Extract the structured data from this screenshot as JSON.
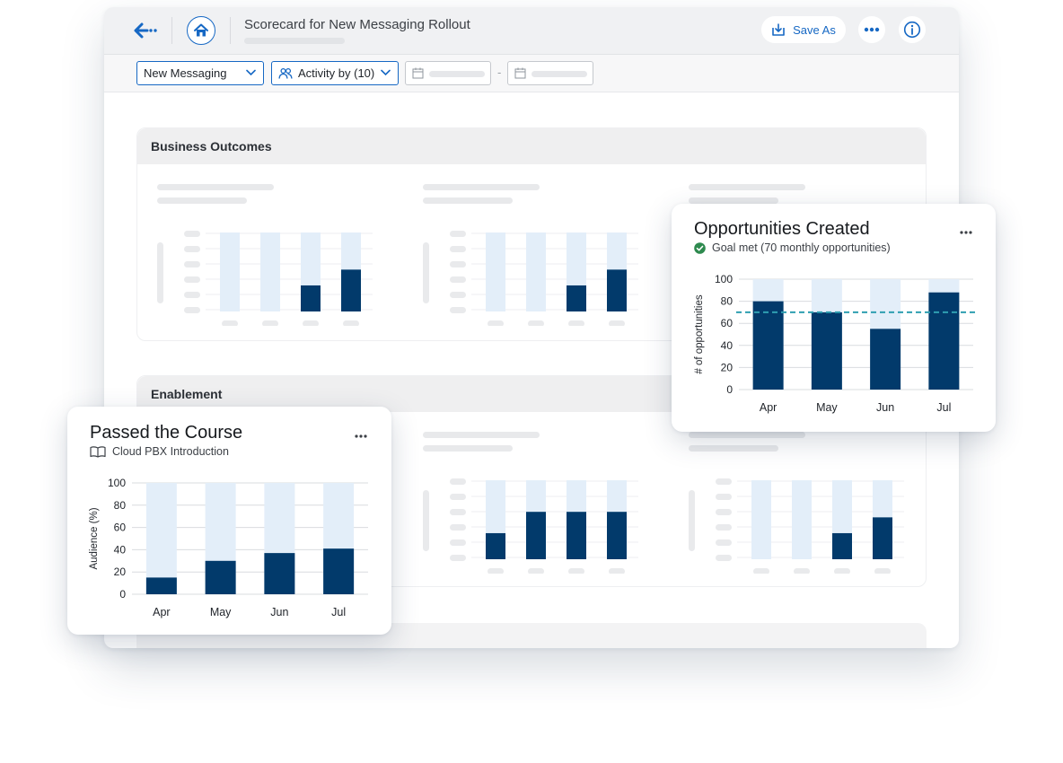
{
  "header": {
    "title": "Scorecard for New Messaging Rollout",
    "save_label": "Save As",
    "icons": {
      "back": "arrow-left-icon",
      "home": "home-icon",
      "save": "download-icon",
      "more": "more-horizontal-icon",
      "info": "info-icon"
    }
  },
  "toolbar": {
    "campaign_select": "New Messaging",
    "activity_select": "Activity by (10)",
    "date_separator": "-"
  },
  "sections": [
    {
      "title": "Business Outcomes"
    },
    {
      "title": "Enablement"
    }
  ],
  "colors": {
    "accent": "#1668c4",
    "bar_dark": "#023a6b",
    "bar_light": "#e3eef9",
    "goal_line": "#2f9fb1",
    "goal_icon": "#2e8a4f"
  },
  "opportunities_card": {
    "title": "Opportunities Created",
    "status": "Goal met (70 monthly opportunities)"
  },
  "course_card": {
    "title": "Passed the Course",
    "course": "Cloud PBX Introduction"
  },
  "chart_data": [
    {
      "type": "bar",
      "title": "Opportunities Created",
      "subtitle": "Goal met (70 monthly opportunities)",
      "categories": [
        "Apr",
        "May",
        "Jun",
        "Jul"
      ],
      "values": [
        80,
        70,
        55,
        88
      ],
      "ylabel": "# of opportunities",
      "yticks": [
        0,
        20,
        40,
        60,
        80,
        100
      ],
      "ylim": [
        0,
        100
      ],
      "goal": 70,
      "grid": true
    },
    {
      "type": "bar",
      "title": "Passed the Course",
      "subtitle": "Cloud PBX Introduction",
      "categories": [
        "Apr",
        "May",
        "Jun",
        "Jul"
      ],
      "values": [
        15,
        30,
        37,
        41
      ],
      "ylabel": "Audience (%)",
      "yticks": [
        0,
        20,
        40,
        60,
        80,
        100
      ],
      "ylim": [
        0,
        100
      ],
      "grid": true
    }
  ]
}
